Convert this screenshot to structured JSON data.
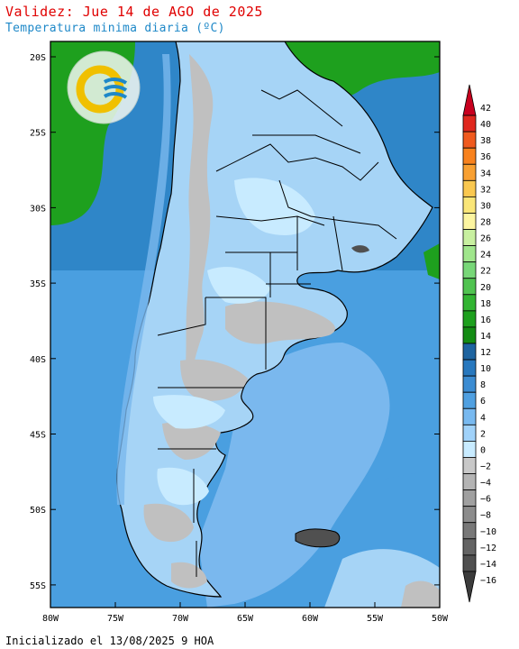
{
  "header": {
    "title": "Validez: Jue 14 de AGO de 2025",
    "subtitle": "Temperatura minima diaria (ºC)"
  },
  "footer": {
    "init_text": "Inicializado el 13/08/2025 9 HOA"
  },
  "axes": {
    "lat_labels": [
      "20S",
      "25S",
      "30S",
      "35S",
      "40S",
      "45S",
      "50S",
      "55S"
    ],
    "lon_labels": [
      "80W",
      "75W",
      "70W",
      "65W",
      "60W",
      "55W",
      "50W"
    ]
  },
  "colorbar": {
    "levels": [
      {
        "label": "42",
        "color": "#c8001e"
      },
      {
        "label": "40",
        "color": "#e0281e"
      },
      {
        "label": "38",
        "color": "#f05a1e"
      },
      {
        "label": "36",
        "color": "#f8821e"
      },
      {
        "label": "34",
        "color": "#f8a032"
      },
      {
        "label": "32",
        "color": "#fac850"
      },
      {
        "label": "30",
        "color": "#fae678"
      },
      {
        "label": "28",
        "color": "#fcf5a0"
      },
      {
        "label": "26",
        "color": "#c8f0a0"
      },
      {
        "label": "24",
        "color": "#a0e68c"
      },
      {
        "label": "22",
        "color": "#78d778"
      },
      {
        "label": "20",
        "color": "#50c350"
      },
      {
        "label": "18",
        "color": "#32b432"
      },
      {
        "label": "16",
        "color": "#1ea01e"
      },
      {
        "label": "14",
        "color": "#148c14"
      },
      {
        "label": "12",
        "color": "#1e64a0"
      },
      {
        "label": "10",
        "color": "#2878be"
      },
      {
        "label": "8",
        "color": "#3c8cd2"
      },
      {
        "label": "6",
        "color": "#50a0e1"
      },
      {
        "label": "4",
        "color": "#78b9f0"
      },
      {
        "label": "2",
        "color": "#a0d2fa"
      },
      {
        "label": "0",
        "color": "#c8ebff"
      },
      {
        "label": "−2",
        "color": "#c8c8c8"
      },
      {
        "label": "−4",
        "color": "#b4b4b4"
      },
      {
        "label": "−6",
        "color": "#a0a0a0"
      },
      {
        "label": "−8",
        "color": "#8c8c8c"
      },
      {
        "label": "−10",
        "color": "#787878"
      },
      {
        "label": "−12",
        "color": "#646464"
      },
      {
        "label": "−14",
        "color": "#505050"
      },
      {
        "label": "−16",
        "color": "#3c3c3c"
      }
    ]
  },
  "colors": {
    "ocean_deep": "#2f86c8",
    "ocean": "#4a9fe0",
    "ocean_light": "#7ab8ee",
    "land_pale": "#a6d4f6",
    "land_cold": "#c8ebff",
    "frost": "#c0c0c0",
    "warm": "#1ea01e"
  },
  "logo": {
    "icon": "smn-logo-icon"
  }
}
